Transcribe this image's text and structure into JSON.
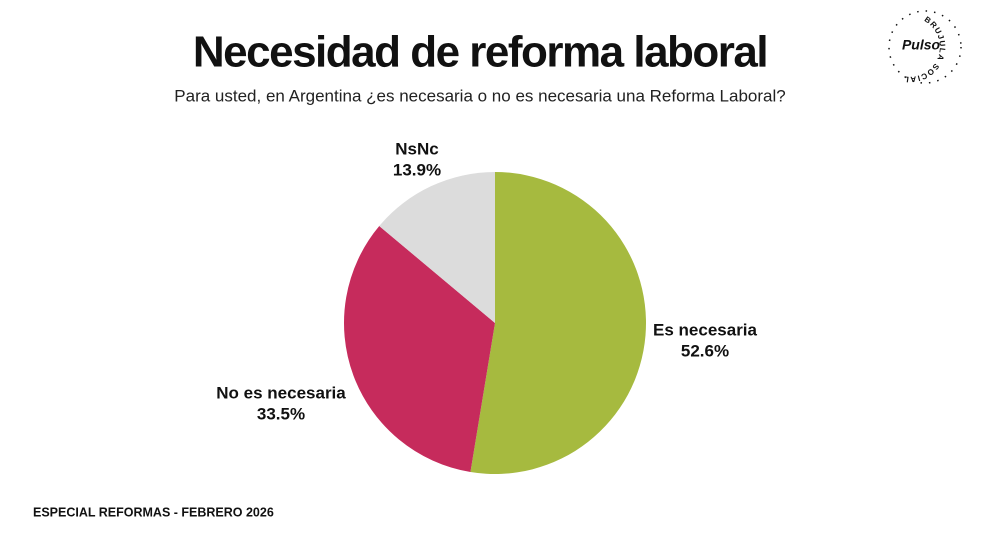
{
  "chart_data": {
    "type": "pie",
    "title": "Necesidad de reforma laboral",
    "subtitle": "Para usted, en Argentina ¿es necesaria o no es necesaria una Reforma Laboral?",
    "categories": [
      "Es necesaria",
      "No es necesaria",
      "NsNc"
    ],
    "values": [
      52.6,
      33.5,
      13.9
    ],
    "value_labels": [
      "52.6%",
      "33.5%",
      "13.9%"
    ],
    "colors": [
      "#a6ba3f",
      "#c62b5c",
      "#dcdcdc"
    ]
  },
  "footer": "ESPECIAL REFORMAS - FEBRERO 2026",
  "logo": {
    "brand": "Pulso",
    "ring_text": "BRUJULA SOCIAL"
  }
}
